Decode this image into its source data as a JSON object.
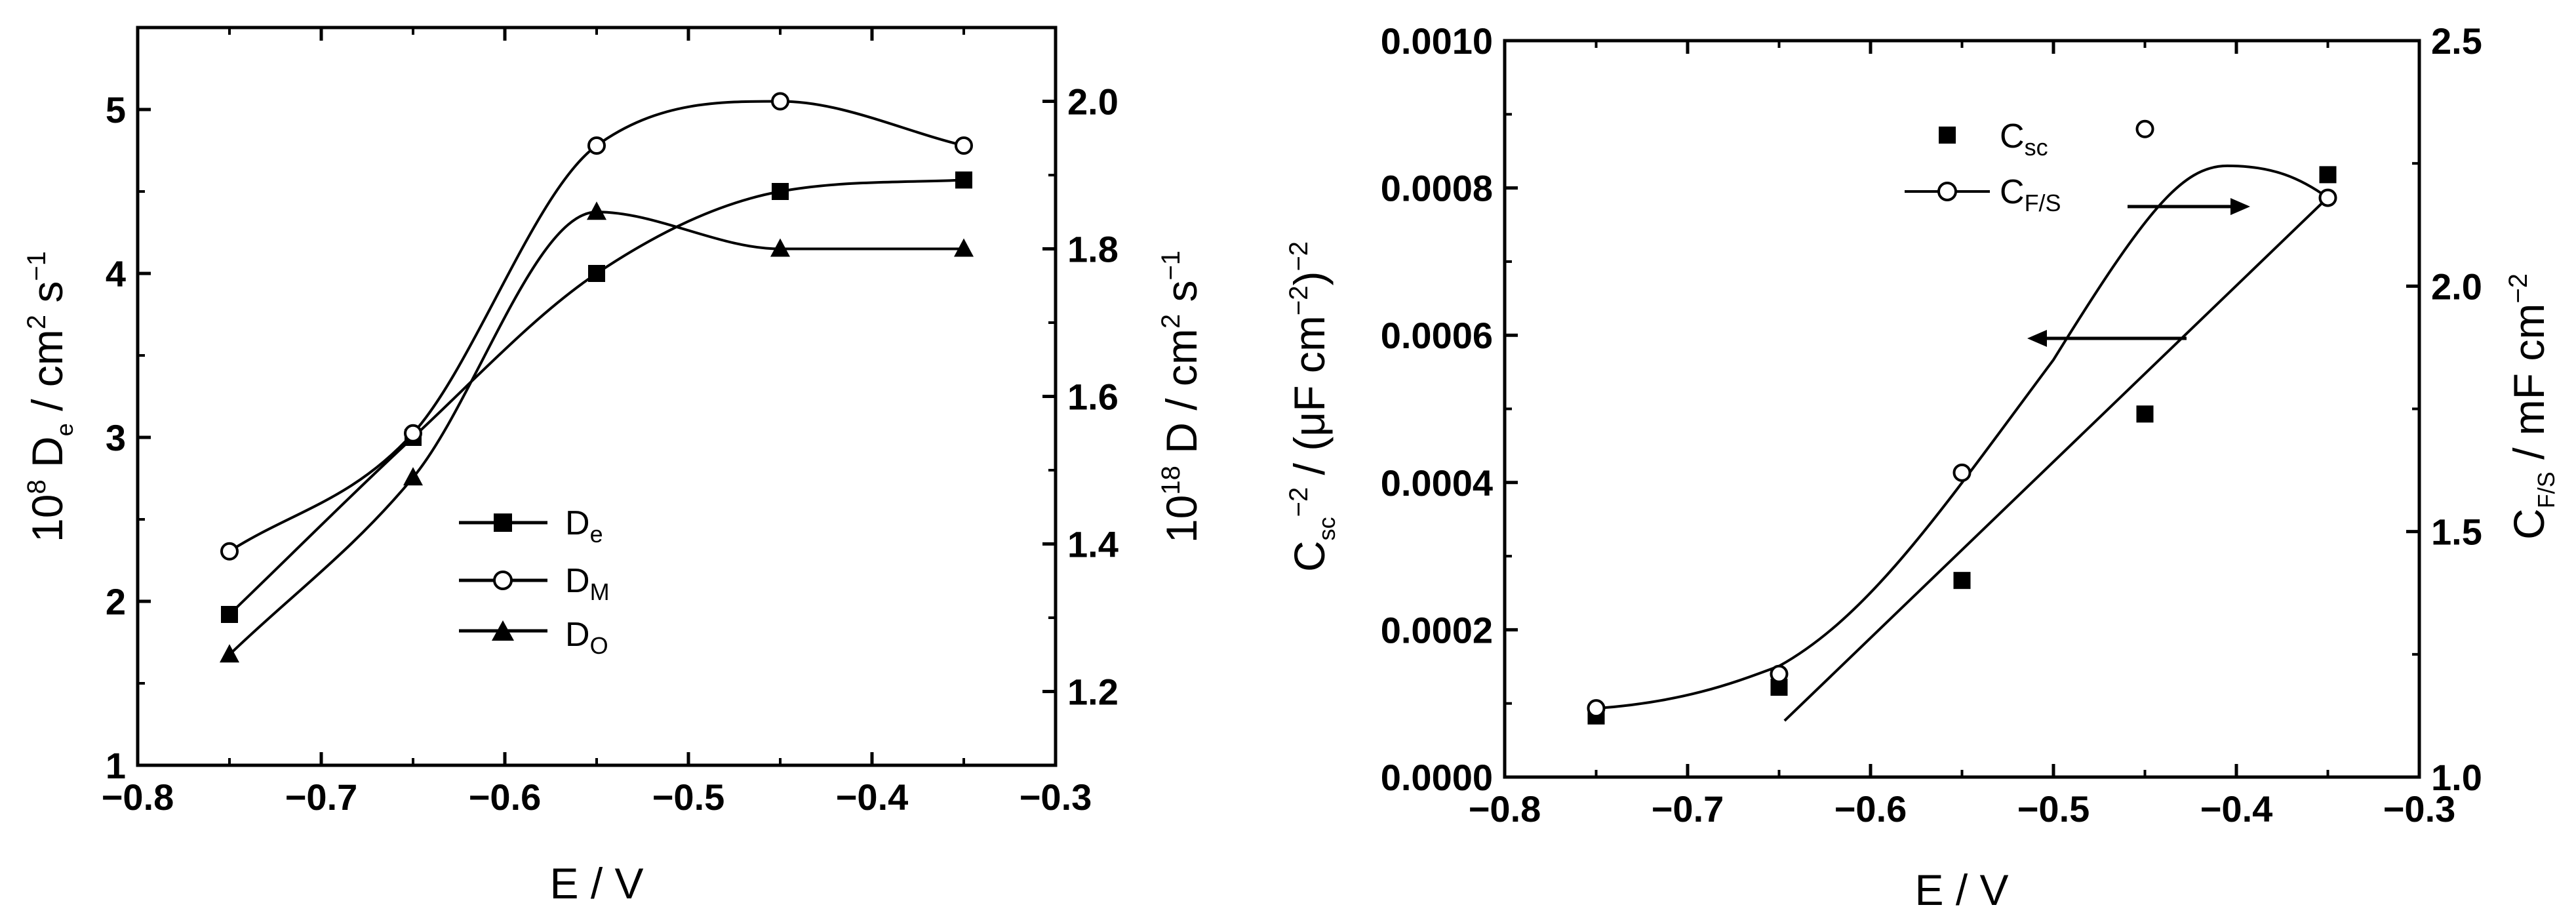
{
  "chart_data": [
    {
      "type": "line",
      "xlabel": "E / V",
      "ylabel_left": "10^8 D_e / cm^2 s^-1",
      "ylabel_right": "10^18 D / cm^2 s^-1",
      "xlim": [
        -0.8,
        -0.3
      ],
      "ylim_left": [
        1,
        5.5
      ],
      "ylim_right": [
        1.1,
        2.1
      ],
      "x_ticks": [
        "−0.8",
        "−0.7",
        "−0.6",
        "−0.5",
        "−0.4",
        "−0.3"
      ],
      "y_ticks_left": [
        "1",
        "2",
        "3",
        "4",
        "5"
      ],
      "y_ticks_right": [
        "1.2",
        "1.4",
        "1.6",
        "1.8",
        "2.0"
      ],
      "legend_position": "center-left",
      "series": [
        {
          "name": "D_e",
          "axis": "left",
          "marker": "filled-square",
          "x": [
            -0.75,
            -0.65,
            -0.55,
            -0.45,
            -0.35
          ],
          "y": [
            1.92,
            3.0,
            4.0,
            4.5,
            4.57
          ]
        },
        {
          "name": "D_M",
          "axis": "right",
          "marker": "open-circle",
          "x": [
            -0.75,
            -0.65,
            -0.55,
            -0.45,
            -0.35
          ],
          "y": [
            1.39,
            1.55,
            1.94,
            2.0,
            1.94
          ]
        },
        {
          "name": "D_O",
          "axis": "right",
          "marker": "filled-triangle",
          "x": [
            -0.75,
            -0.65,
            -0.55,
            -0.45,
            -0.35
          ],
          "y": [
            1.25,
            1.49,
            1.85,
            1.8,
            1.8
          ]
        }
      ]
    },
    {
      "type": "scatter",
      "xlabel": "E / V",
      "ylabel_left": "C_sc^-2 / (μF cm^-2)^-2",
      "ylabel_right": "C_F/S / mF cm^-2",
      "xlim": [
        -0.8,
        -0.3
      ],
      "ylim_left": [
        0,
        0.001
      ],
      "ylim_right": [
        1.0,
        2.5
      ],
      "x_ticks": [
        "−0.8",
        "−0.7",
        "−0.6",
        "−0.5",
        "−0.4",
        "−0.3"
      ],
      "y_ticks_left": [
        "0.0000",
        "0.0002",
        "0.0004",
        "0.0006",
        "0.0008",
        "0.0010"
      ],
      "y_ticks_right": [
        "1.0",
        "1.5",
        "2.0",
        "2.5"
      ],
      "legend_position": "top-center",
      "series": [
        {
          "name": "C_sc",
          "axis": "left",
          "marker": "filled-square",
          "x": [
            -0.75,
            -0.65,
            -0.55,
            -0.45,
            -0.35
          ],
          "y": [
            8.3e-05,
            0.000122,
            0.000267,
            0.000493,
            0.000818
          ]
        },
        {
          "name": "C_F/S",
          "axis": "right",
          "marker": "open-circle",
          "x": [
            -0.75,
            -0.65,
            -0.55,
            -0.45,
            -0.35
          ],
          "y": [
            1.14,
            1.21,
            1.62,
            2.32,
            2.18
          ]
        }
      ],
      "fits": [
        {
          "name": "C_sc linear fit",
          "axis": "left",
          "x": [
            -0.647,
            -0.35
          ],
          "y": [
            7.65e-05,
            0.000787
          ]
        }
      ],
      "arrows": [
        {
          "direction": "left",
          "points_to_axis": "left"
        },
        {
          "direction": "right",
          "points_to_axis": "right"
        }
      ]
    }
  ]
}
